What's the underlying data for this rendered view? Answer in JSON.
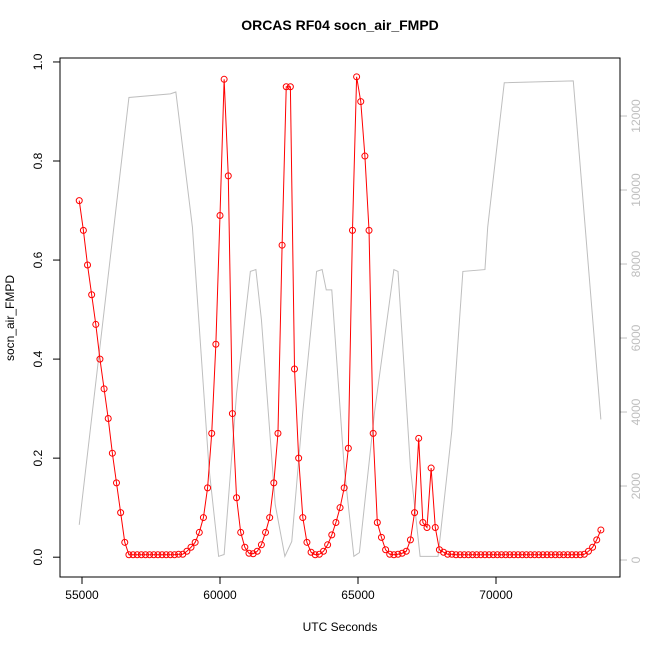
{
  "chart_data": {
    "type": "scatter",
    "title": "ORCAS RF04 socn_air_FMPD",
    "x_label": "UTC Seconds",
    "y_label": "socn_air_FMPD",
    "xlim": [
      54203,
      74493
    ],
    "xticks": [
      55000,
      60000,
      65000,
      70000
    ],
    "ylim": [
      -0.04,
      1.008
    ],
    "yticks": [
      {
        "value": 0,
        "label": "0.0"
      },
      {
        "value": 0.2,
        "label": "0.2"
      },
      {
        "value": 0.4,
        "label": "0.4"
      },
      {
        "value": 0.6,
        "label": "0.6"
      },
      {
        "value": 0.8,
        "label": "0.8"
      },
      {
        "value": 1,
        "label": "1.0"
      }
    ],
    "y2lim": [
      -459,
      13568
    ],
    "y2ticks": [
      0,
      2000,
      4000,
      6000,
      8000,
      10000,
      12000
    ],
    "y2_color": "#bebebe",
    "series": [
      {
        "color": "#ff0000",
        "axis": "y",
        "marker": "circle",
        "x": [
          54900,
          55050,
          55200,
          55350,
          55500,
          55650,
          55800,
          55950,
          56100,
          56250,
          56400,
          56550,
          56700,
          56850,
          57000,
          57150,
          57300,
          57450,
          57600,
          57750,
          57900,
          58050,
          58200,
          58350,
          58500,
          58650,
          58800,
          58950,
          59100,
          59250,
          59400,
          59550,
          59700,
          59850,
          60000,
          60150,
          60300,
          60450,
          60600,
          60750,
          60900,
          61050,
          61200,
          61350,
          61500,
          61650,
          61800,
          61950,
          62100,
          62250,
          62400,
          62550,
          62700,
          62850,
          63000,
          63150,
          63300,
          63450,
          63600,
          63750,
          63900,
          64050,
          64200,
          64350,
          64500,
          64650,
          64800,
          64950,
          65100,
          65250,
          65400,
          65550,
          65700,
          65850,
          66000,
          66150,
          66300,
          66450,
          66600,
          66750,
          66900,
          67050,
          67200,
          67350,
          67500,
          67650,
          67800,
          67950,
          68100,
          68250,
          68400,
          68550,
          68700,
          68850,
          69000,
          69150,
          69300,
          69450,
          69600,
          69750,
          69900,
          70050,
          70200,
          70350,
          70500,
          70650,
          70800,
          70950,
          71100,
          71250,
          71400,
          71550,
          71700,
          71850,
          72000,
          72150,
          72300,
          72450,
          72600,
          72750,
          72900,
          73050,
          73200,
          73350,
          73500,
          73650,
          73800
        ],
        "values": [
          0.72,
          0.66,
          0.59,
          0.53,
          0.47,
          0.4,
          0.34,
          0.28,
          0.21,
          0.15,
          0.09,
          0.03,
          0.005,
          0.005,
          0.005,
          0.005,
          0.005,
          0.005,
          0.005,
          0.005,
          0.005,
          0.005,
          0.005,
          0.005,
          0.006,
          0.006,
          0.012,
          0.02,
          0.03,
          0.05,
          0.08,
          0.14,
          0.25,
          0.43,
          0.69,
          0.965,
          0.77,
          0.29,
          0.12,
          0.05,
          0.02,
          0.008,
          0.007,
          0.012,
          0.025,
          0.05,
          0.08,
          0.15,
          0.25,
          0.63,
          0.95,
          0.95,
          0.38,
          0.2,
          0.08,
          0.03,
          0.01,
          0.005,
          0.006,
          0.012,
          0.025,
          0.045,
          0.07,
          0.1,
          0.14,
          0.22,
          0.66,
          0.97,
          0.92,
          0.81,
          0.66,
          0.25,
          0.07,
          0.04,
          0.015,
          0.006,
          0.005,
          0.006,
          0.008,
          0.012,
          0.035,
          0.09,
          0.24,
          0.07,
          0.06,
          0.18,
          0.06,
          0.015,
          0.01,
          0.006,
          0.006,
          0.005,
          0.005,
          0.005,
          0.005,
          0.005,
          0.005,
          0.005,
          0.005,
          0.005,
          0.005,
          0.005,
          0.005,
          0.005,
          0.005,
          0.005,
          0.005,
          0.005,
          0.005,
          0.005,
          0.005,
          0.005,
          0.005,
          0.005,
          0.005,
          0.005,
          0.005,
          0.005,
          0.005,
          0.005,
          0.005,
          0.005,
          0.006,
          0.012,
          0.02,
          0.035,
          0.055
        ]
      },
      {
        "color": "#bebebe",
        "axis": "y2",
        "marker": "none",
        "x": [
          54900,
          56700,
          58200,
          58400,
          59000,
          59600,
          59950,
          60150,
          60600,
          61100,
          61300,
          61500,
          62000,
          62350,
          62600,
          63000,
          63500,
          63700,
          63850,
          64050,
          64500,
          64850,
          65050,
          65600,
          66300,
          66450,
          66900,
          67250,
          67900,
          68400,
          68800,
          69600,
          69700,
          70300,
          72800,
          73800
        ],
        "values": [
          950,
          12500,
          12600,
          12650,
          9000,
          2500,
          100,
          150,
          4500,
          7800,
          7850,
          6500,
          1500,
          100,
          500,
          4000,
          7800,
          7850,
          7300,
          7300,
          2500,
          100,
          200,
          4000,
          7850,
          7800,
          2500,
          100,
          100,
          3500,
          7800,
          7850,
          9000,
          12900,
          12950,
          3800
        ]
      }
    ]
  }
}
